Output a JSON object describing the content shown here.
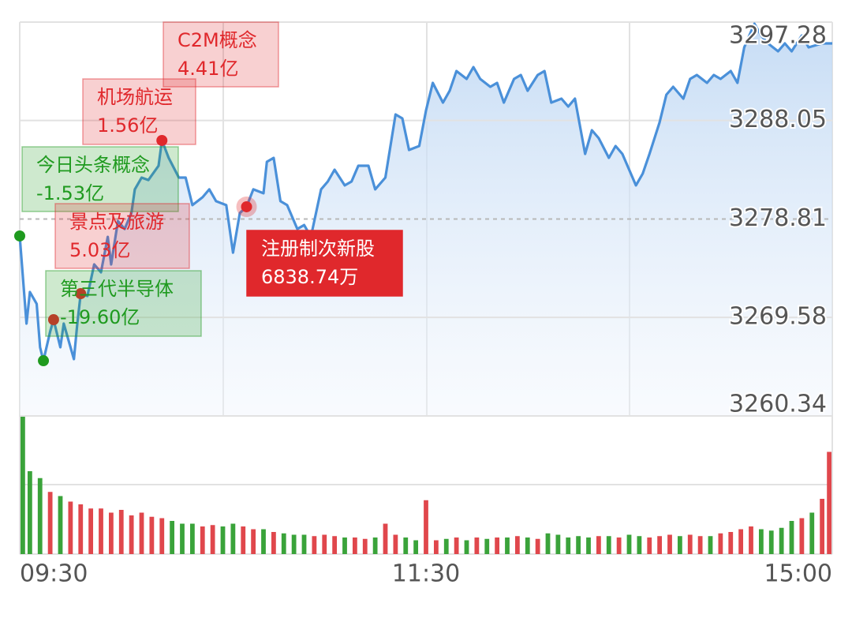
{
  "chart_data": [
    {
      "type": "line",
      "color": "#4a90d9",
      "xlim": [
        0,
        240
      ],
      "xticks": [
        {
          "value": 0,
          "label": "09:30"
        },
        {
          "value": 120,
          "label": "11:30"
        },
        {
          "value": 240,
          "label": "15:00"
        }
      ],
      "ylim": [
        3260.34,
        3297.28
      ],
      "yticks": [
        3260.34,
        3269.58,
        3278.81,
        3288.05,
        3297.28
      ],
      "x": [
        0,
        2,
        3,
        5,
        6,
        7,
        9,
        10,
        12,
        13,
        16,
        17,
        18,
        20,
        22,
        24,
        26,
        27,
        29,
        31,
        33,
        34,
        36,
        38,
        41,
        42,
        44,
        47,
        49,
        51,
        54,
        56,
        58,
        61,
        63,
        65,
        67,
        69,
        72,
        73,
        75,
        77,
        79,
        82,
        84,
        86,
        89,
        91,
        93,
        96,
        98,
        100,
        103,
        105,
        108,
        111,
        113,
        115,
        118,
        120,
        122,
        125,
        127,
        129,
        132,
        134,
        136,
        139,
        141,
        143,
        146,
        148,
        150,
        153,
        155,
        157,
        160,
        162,
        164,
        167,
        169,
        171,
        174,
        176,
        178,
        182,
        184,
        186,
        189,
        191,
        193,
        196,
        198,
        200,
        203,
        205,
        207,
        210,
        212,
        214,
        217,
        219,
        221,
        224,
        226,
        228,
        231,
        233,
        237,
        240
      ],
      "values": [
        3277.22,
        3269.0,
        3271.96,
        3270.85,
        3266.78,
        3265.52,
        3268.26,
        3269.37,
        3266.78,
        3269.0,
        3265.67,
        3269.0,
        3271.81,
        3271.59,
        3274.55,
        3273.81,
        3277.14,
        3274.55,
        3278.62,
        3277.88,
        3279.37,
        3281.59,
        3282.7,
        3282.47,
        3283.81,
        3286.18,
        3284.55,
        3282.7,
        3282.7,
        3280.11,
        3280.85,
        3281.59,
        3280.48,
        3280.11,
        3275.66,
        3279.37,
        3279.96,
        3281.59,
        3281.22,
        3284.18,
        3284.55,
        3280.48,
        3280.11,
        3277.88,
        3278.25,
        3277.14,
        3281.59,
        3282.33,
        3283.44,
        3281.96,
        3282.33,
        3283.81,
        3283.81,
        3281.59,
        3282.7,
        3288.62,
        3288.25,
        3285.29,
        3285.66,
        3288.99,
        3291.58,
        3289.73,
        3290.84,
        3292.69,
        3291.95,
        3293.06,
        3291.95,
        3291.21,
        3291.58,
        3289.73,
        3291.95,
        3292.32,
        3290.84,
        3292.32,
        3292.69,
        3289.73,
        3290.1,
        3289.36,
        3290.1,
        3284.92,
        3287.14,
        3286.4,
        3284.55,
        3285.66,
        3284.92,
        3281.96,
        3283.07,
        3284.92,
        3287.88,
        3290.47,
        3291.21,
        3290.1,
        3291.95,
        3292.32,
        3291.58,
        3292.32,
        3291.95,
        3292.69,
        3291.58,
        3294.91,
        3297.13,
        3296.02,
        3295.28,
        3294.54,
        3295.28,
        3294.54,
        3296.02,
        3294.91,
        3295.28,
        3295.28
      ],
      "annotations": [
        {
          "name": "C2M概念",
          "amount": "4.41亿",
          "x": 10,
          "y": 3269.37,
          "color": "#e0282c"
        },
        {
          "name": "机场航运",
          "amount": "1.56亿",
          "x": 42,
          "y": 3286.18,
          "color": "#e0282c"
        },
        {
          "name": "今日头条概念",
          "amount": "-1.53亿",
          "x": 0,
          "y": 3277.22,
          "color": "#1f9a1f"
        },
        {
          "name": "景点及旅游",
          "amount": "5.03亿",
          "x": 18,
          "y": 3271.81,
          "color": "#e0282c"
        },
        {
          "name": "第三代半导体",
          "amount": "-19.60亿",
          "x": 7,
          "y": 3265.52,
          "color": "#1f9a1f"
        },
        {
          "name": "注册制次新股",
          "amount": "6838.74万",
          "x": 67,
          "y": 3279.96,
          "color": "#e0282c",
          "active": true
        }
      ]
    },
    {
      "type": "bar",
      "up_color": "#e0474c",
      "down_color": "#3aa33a",
      "xlim": [
        0,
        240
      ],
      "ylim": [
        0,
        100
      ],
      "x": [
        0,
        3,
        6,
        9,
        12,
        15,
        18,
        21,
        24,
        27,
        30,
        33,
        36,
        39,
        42,
        45,
        48,
        51,
        54,
        57,
        60,
        63,
        66,
        69,
        72,
        75,
        78,
        81,
        84,
        87,
        90,
        93,
        96,
        99,
        102,
        105,
        108,
        111,
        114,
        117,
        120,
        123,
        126,
        129,
        132,
        135,
        138,
        141,
        144,
        147,
        150,
        153,
        156,
        159,
        162,
        165,
        168,
        171,
        174,
        177,
        180,
        183,
        186,
        189,
        192,
        195,
        198,
        201,
        204,
        207,
        210,
        213,
        216,
        219,
        222,
        225,
        228,
        231,
        234,
        237,
        240
      ],
      "values": [
        100,
        60,
        55,
        45,
        42,
        38,
        36,
        33,
        33,
        30,
        32,
        28,
        30,
        27,
        26,
        24,
        22,
        22,
        20,
        21,
        20,
        22,
        20,
        18,
        18,
        16,
        15,
        14,
        14,
        13,
        14,
        13,
        12,
        12,
        11,
        12,
        22,
        14,
        12,
        10,
        39,
        10,
        11,
        12,
        10,
        12,
        11,
        12,
        12,
        13,
        12,
        11,
        15,
        14,
        12,
        13,
        12,
        13,
        13,
        12,
        14,
        13,
        12,
        13,
        14,
        13,
        14,
        13,
        13,
        15,
        16,
        18,
        20,
        18,
        17,
        19,
        24,
        26,
        30,
        40,
        74
      ]
    }
  ]
}
